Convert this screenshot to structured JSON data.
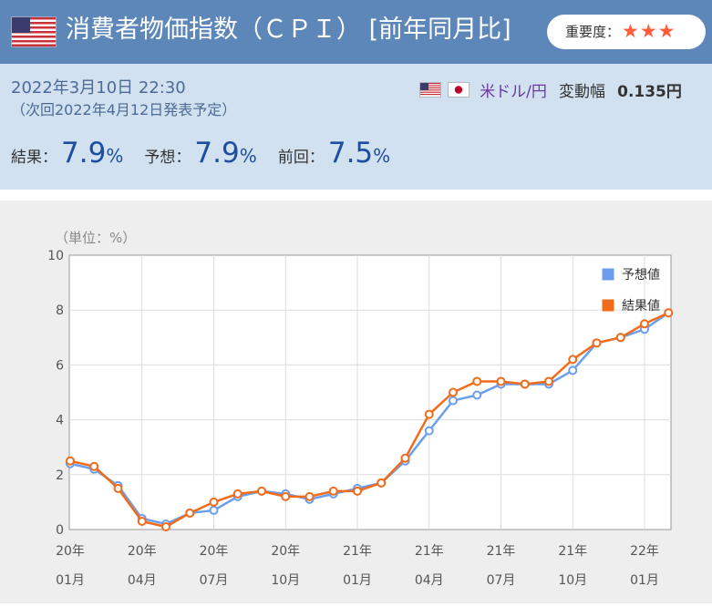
{
  "header": {
    "title": "消費者物価指数（ＣＰＩ） [前年同月比]",
    "importance_label": "重要度：",
    "importance_stars": "★★★",
    "flag_icon": "us-flag-icon"
  },
  "release": {
    "datetime": "2022年3月10日 22:30",
    "next": "（次回2022年4月12日発表予定）"
  },
  "pair": {
    "name": "米ドル/円",
    "range_label": "変動幅",
    "range_value": "0.135円",
    "icons": [
      "us-flag-icon",
      "jp-flag-icon"
    ]
  },
  "values": {
    "result_label": "結果：",
    "result": "7.9",
    "forecast_label": "予想：",
    "forecast": "7.9",
    "previous_label": "前回：",
    "previous": "7.5",
    "unit": "%"
  },
  "colors": {
    "header_bg": "#5d87b9",
    "info_bg": "#d1e1ef",
    "forecast": "#6c9ef0",
    "result": "#f06c1a",
    "stars": "#ff5d3b"
  },
  "chart_data": {
    "type": "line",
    "unit_label": "（単位：%）",
    "ylim": [
      0,
      10
    ],
    "yticks": [
      0,
      2,
      4,
      6,
      8,
      10
    ],
    "xtick_labels": [
      {
        "index": 0,
        "year": "20年",
        "month": "01月"
      },
      {
        "index": 3,
        "year": "20年",
        "month": "04月"
      },
      {
        "index": 6,
        "year": "20年",
        "month": "07月"
      },
      {
        "index": 9,
        "year": "20年",
        "month": "10月"
      },
      {
        "index": 12,
        "year": "21年",
        "month": "01月"
      },
      {
        "index": 15,
        "year": "21年",
        "month": "04月"
      },
      {
        "index": 18,
        "year": "21年",
        "month": "07月"
      },
      {
        "index": 21,
        "year": "21年",
        "month": "10月"
      },
      {
        "index": 24,
        "year": "22年",
        "month": "01月"
      }
    ],
    "categories": [
      "20/01",
      "20/02",
      "20/03",
      "20/04",
      "20/05",
      "20/06",
      "20/07",
      "20/08",
      "20/09",
      "20/10",
      "20/11",
      "20/12",
      "21/01",
      "21/02",
      "21/03",
      "21/04",
      "21/05",
      "21/06",
      "21/07",
      "21/08",
      "21/09",
      "21/10",
      "21/11",
      "21/12",
      "22/01",
      "22/02"
    ],
    "grid": true,
    "legend_position": "top-right",
    "series": [
      {
        "name": "予想値",
        "color": "#6c9ef0",
        "values": [
          2.4,
          2.2,
          1.6,
          0.4,
          0.2,
          0.6,
          0.7,
          1.2,
          1.4,
          1.3,
          1.1,
          1.3,
          1.5,
          1.7,
          2.5,
          3.6,
          4.7,
          4.9,
          5.3,
          5.3,
          5.3,
          5.8,
          6.8,
          7.0,
          7.3,
          7.9
        ]
      },
      {
        "name": "結果値",
        "color": "#f06c1a",
        "values": [
          2.5,
          2.3,
          1.5,
          0.3,
          0.1,
          0.6,
          1.0,
          1.3,
          1.4,
          1.2,
          1.2,
          1.4,
          1.4,
          1.7,
          2.6,
          4.2,
          5.0,
          5.4,
          5.4,
          5.3,
          5.4,
          6.2,
          6.8,
          7.0,
          7.5,
          7.9
        ]
      }
    ]
  }
}
